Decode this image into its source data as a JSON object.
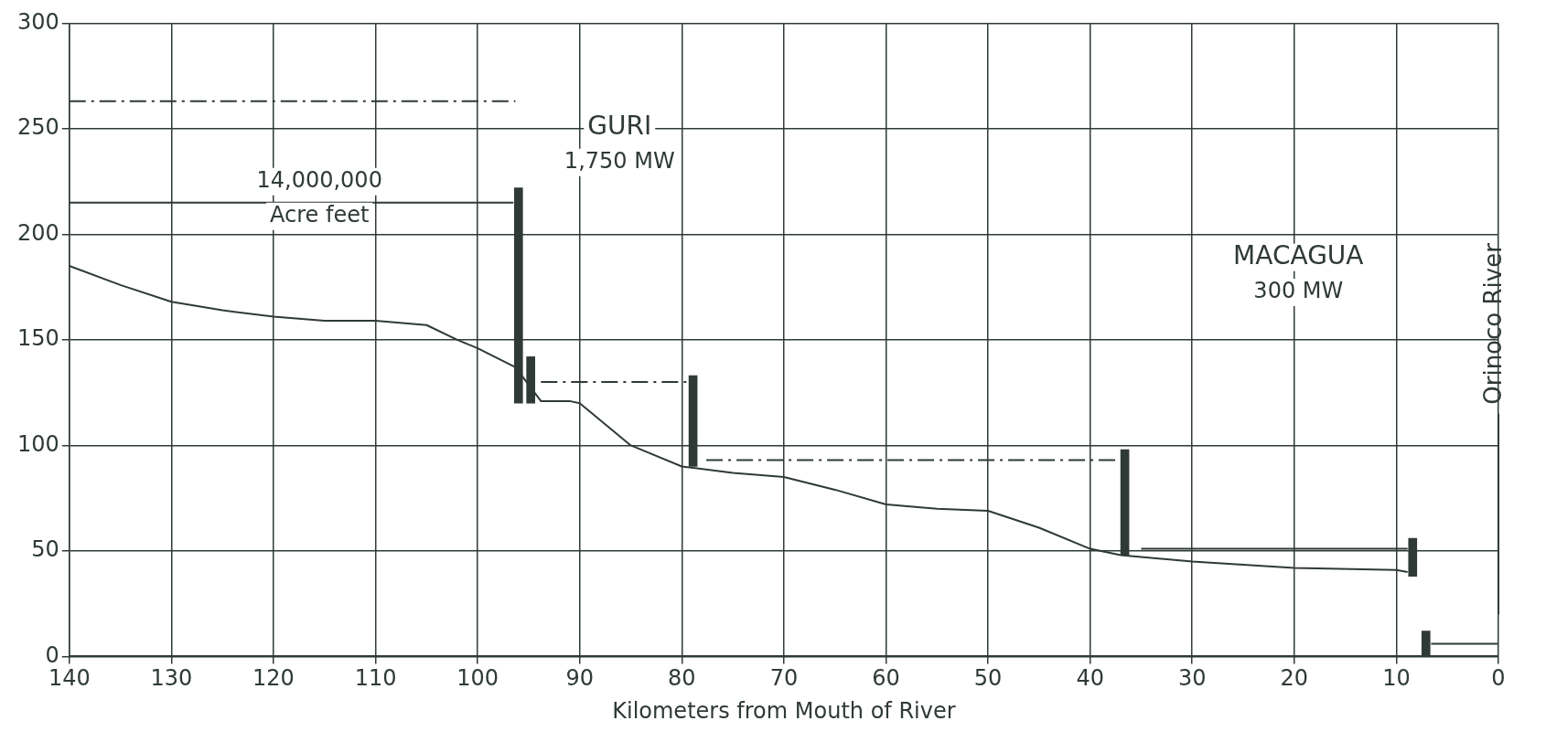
{
  "chart_data": {
    "type": "line",
    "xlabel": "Kilometers from Mouth of River",
    "xlim": [
      140,
      0
    ],
    "xticks": [
      140,
      130,
      120,
      110,
      100,
      90,
      80,
      70,
      60,
      50,
      40,
      30,
      20,
      10,
      0
    ],
    "ylim": [
      0,
      300
    ],
    "yticks": [
      0,
      50,
      100,
      150,
      200,
      250,
      300
    ],
    "grid": true,
    "legend": false,
    "marker": "none",
    "series": [
      {
        "color": "#2f3a36",
        "line_style": "solid",
        "x": [
          140,
          135,
          130,
          125,
          120,
          115,
          110,
          105,
          102,
          100,
          96.3,
          93.8,
          91,
          90,
          85,
          80,
          75,
          70,
          65,
          60,
          55,
          50,
          45,
          40,
          37,
          30,
          20,
          10,
          8.9
        ],
        "values": [
          185,
          176,
          168,
          164,
          161,
          159,
          159,
          157,
          150,
          146,
          137,
          121,
          121,
          120,
          100,
          90,
          87,
          85,
          79,
          72,
          70,
          69,
          61,
          51,
          48,
          45,
          42,
          41,
          40
        ]
      },
      {
        "color": "#2f3a36",
        "line_style": "dashed",
        "x": [
          140,
          96.3
        ],
        "values": [
          263,
          263
        ]
      },
      {
        "color": "#2f3a36",
        "line_style": "solid",
        "x": [
          140,
          96.5
        ],
        "values": [
          215,
          215
        ]
      },
      {
        "color": "#2f3a36",
        "line_style": "dashed",
        "x": [
          93.8,
          79.4
        ],
        "values": [
          130,
          130
        ]
      },
      {
        "color": "#2f3a36",
        "line_style": "dashed",
        "x": [
          77.6,
          37.1
        ],
        "values": [
          93,
          93
        ]
      },
      {
        "color": "#2f3a36",
        "line_style": "solid",
        "x": [
          35,
          8.9
        ],
        "values": [
          51,
          51
        ]
      },
      {
        "color": "#2f3a36",
        "line_style": "solid",
        "x": [
          6.6,
          0
        ],
        "values": [
          6,
          6
        ]
      },
      {
        "type": "bar",
        "color": "#2f3a36",
        "x": [
          96,
          94.8,
          78.9,
          36.6,
          8.4,
          7.1
        ],
        "base": [
          120,
          120,
          90,
          48,
          38,
          0
        ],
        "values": [
          102,
          22,
          43,
          50,
          18,
          12
        ]
      }
    ],
    "ref_lines": [
      {
        "axis": "x",
        "value": 0,
        "label": "Orinoco River"
      }
    ],
    "annotations": [
      "GURI",
      "1,750 MW",
      "14,000,000",
      "Acre feet",
      "MACAGUA",
      "300 MW"
    ]
  }
}
